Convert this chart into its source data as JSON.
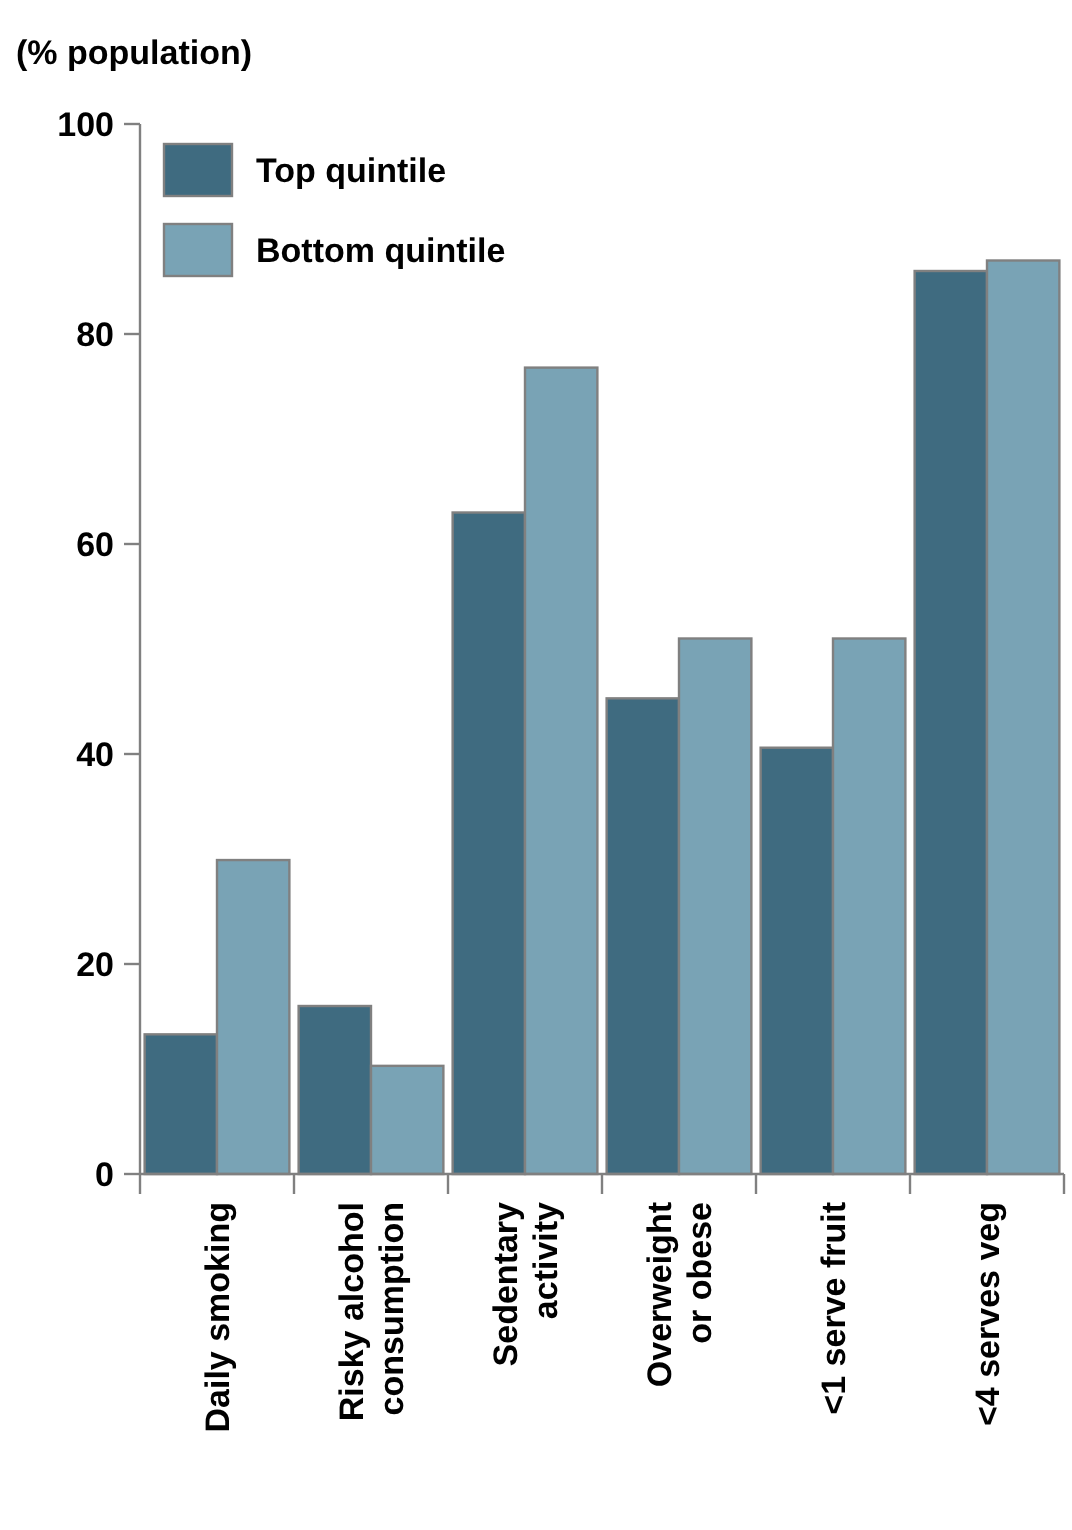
{
  "chart_data": {
    "type": "bar",
    "ylabel": "(% population)",
    "categories": [
      "Daily smoking",
      "Risky alcohol\nconsumption",
      "Sedentary\nactivity",
      "Overweight\nor obese",
      "<1 serve fruit",
      "<4 serves veg"
    ],
    "series": [
      {
        "name": "Top quintile",
        "color": "#3f6b80",
        "values": [
          13.3,
          16,
          63,
          45.3,
          40.6,
          86
        ]
      },
      {
        "name": "Bottom quintile",
        "color": "#79a3b5",
        "values": [
          29.9,
          10.3,
          76.8,
          51,
          51,
          87
        ]
      }
    ],
    "ylim": [
      0,
      100
    ],
    "yticks": [
      0,
      20,
      40,
      60,
      80,
      100
    ],
    "grid": false,
    "legend": "top left"
  }
}
